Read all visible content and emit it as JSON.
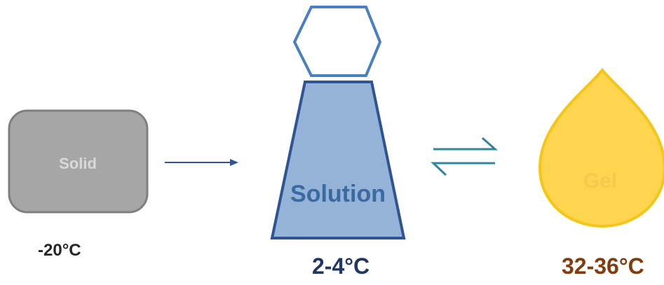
{
  "states": {
    "solid": {
      "label": "Solid",
      "temperature": "-20°C"
    },
    "solution": {
      "label": "Solution",
      "temperature": "2-4°C"
    },
    "gel": {
      "label": "Gel",
      "temperature": "32-36°C"
    }
  },
  "colors": {
    "solid_fill": "#a6a6a6",
    "solid_stroke": "#7f7f7f",
    "solid_text": "#d9d9d9",
    "solution_fill": "#95b3d7",
    "solution_stroke": "#2f5496",
    "solution_text": "#3a6aa3",
    "cap_stroke": "#4a7fc1",
    "arrow": "#2f5496",
    "equilibrium": "#31859c",
    "gel_fill": "#ffd54f",
    "gel_stroke": "#f5c518",
    "gel_text": "#f9c74f",
    "temp_dark": "#1f3864",
    "temp_gel": "#843c0c",
    "temp_solid": "#262626"
  }
}
